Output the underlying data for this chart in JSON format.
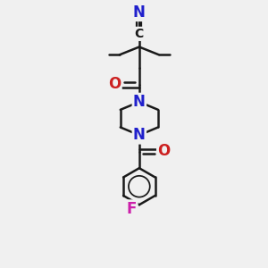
{
  "bg_color": "#f0f0f0",
  "bond_color": "#1a1a1a",
  "N_color": "#2020cc",
  "O_color": "#cc2020",
  "F_color": "#cc20aa",
  "line_width": 1.8,
  "fig_size": [
    3.0,
    3.0
  ],
  "dpi": 100,
  "xlim": [
    0,
    10
  ],
  "ylim": [
    0,
    10
  ]
}
